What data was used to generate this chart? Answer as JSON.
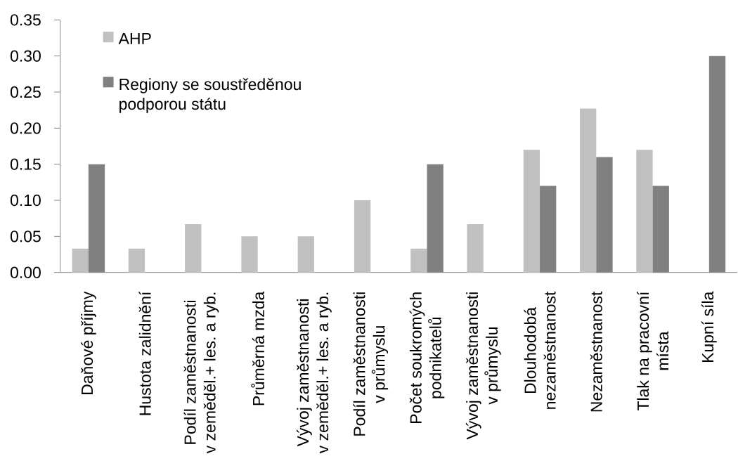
{
  "chart_data": {
    "type": "bar",
    "categories": [
      "Daňové příjmy",
      "Hustota zalidnění",
      "Podíl zaměstnanosti v zeměděl.+ les. a ryb.",
      "Průměrná mzda",
      "Vývoj zaměstnanosti v zeměděl.+ les. a ryb.",
      "Podíl zaměstnanosti v průmyslu",
      "Počet soukromých podnikatelů",
      "Vývoj zaměstnanosti v průmyslu",
      "Dlouhodobá nezaměstnanost",
      "Nezaměstnanost",
      "Tlak na pracovní místa",
      "Kupní síla"
    ],
    "series": [
      {
        "name": "AHP",
        "color": "#c0c0c0",
        "values": [
          0.033,
          0.033,
          0.067,
          0.05,
          0.05,
          0.1,
          0.033,
          0.067,
          0.17,
          0.227,
          0.17,
          null
        ]
      },
      {
        "name": "Regiony se soustředěnou podporou státu",
        "color": "#808080",
        "values": [
          0.15,
          null,
          null,
          null,
          null,
          null,
          0.15,
          null,
          0.12,
          0.16,
          0.12,
          0.3
        ]
      }
    ],
    "ylim": [
      0,
      0.35
    ],
    "yticks": [
      {
        "value": 0,
        "label": "0.00"
      },
      0.05,
      {
        "value": 0.1,
        "label": "0.10"
      },
      0.15,
      {
        "value": 0.2,
        "label": "0.20"
      },
      0.25,
      {
        "value": 0.3,
        "label": "0.30"
      },
      0.35
    ],
    "legend": "top left"
  }
}
